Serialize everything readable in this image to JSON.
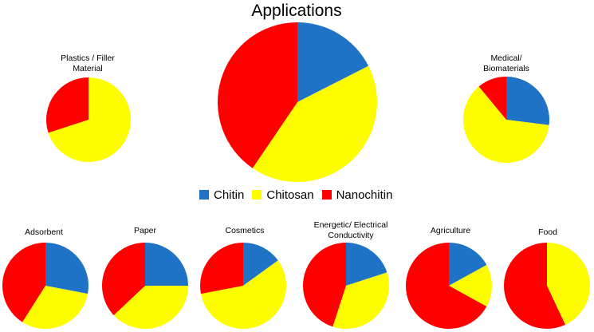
{
  "title": "Applications",
  "colors": {
    "Chitin": "#1f73c6",
    "Chitosan": "#fdfd00",
    "Nanochitin": "#ff0000"
  },
  "legend": [
    "Chitin",
    "Chitosan",
    "Nanochitin"
  ],
  "chart_data": [
    {
      "type": "pie",
      "title": "Applications",
      "labels": [
        "Chitin",
        "Chitosan",
        "Nanochitin"
      ],
      "values": [
        17.5,
        42.0,
        40.5
      ]
    },
    {
      "type": "pie",
      "title": "Plastics / Filler\nMaterial",
      "labels": [
        "Chitin",
        "Chitosan",
        "Nanochitin"
      ],
      "values": [
        0,
        70,
        30
      ]
    },
    {
      "type": "pie",
      "title": "Medical/\nBiomaterials",
      "labels": [
        "Chitin",
        "Chitosan",
        "Nanochitin"
      ],
      "values": [
        27,
        62,
        11
      ]
    },
    {
      "type": "pie",
      "title": "Adsorbent",
      "labels": [
        "Chitin",
        "Chitosan",
        "Nanochitin"
      ],
      "values": [
        28,
        31,
        41
      ]
    },
    {
      "type": "pie",
      "title": "Paper",
      "labels": [
        "Chitin",
        "Chitosan",
        "Nanochitin"
      ],
      "values": [
        25,
        38,
        37
      ]
    },
    {
      "type": "pie",
      "title": "Cosmetics",
      "labels": [
        "Chitin",
        "Chitosan",
        "Nanochitin"
      ],
      "values": [
        15,
        57,
        28
      ]
    },
    {
      "type": "pie",
      "title": "Energetic/ Electrical\nConductivity",
      "labels": [
        "Chitin",
        "Chitosan",
        "Nanochitin"
      ],
      "values": [
        20,
        35,
        45
      ]
    },
    {
      "type": "pie",
      "title": "Agriculture",
      "labels": [
        "Chitin",
        "Chitosan",
        "Nanochitin"
      ],
      "values": [
        17,
        16,
        67
      ]
    },
    {
      "type": "pie",
      "title": "Food",
      "labels": [
        "Chitin",
        "Chitosan",
        "Nanochitin"
      ],
      "values": [
        0,
        43,
        57
      ]
    }
  ]
}
